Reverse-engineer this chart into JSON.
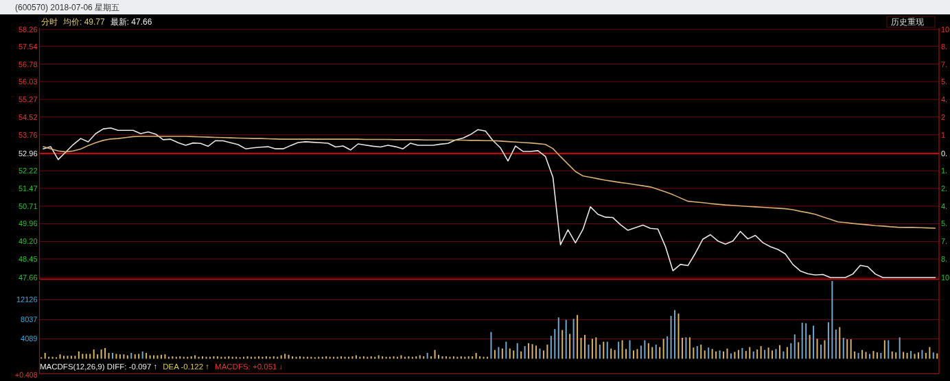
{
  "chart_data": [
    {
      "type": "line",
      "title": "(600570) 2018-07-06 星期五",
      "annotations": [
        "分时",
        "均价: 49.77",
        "最新: 47.66",
        "历史重现",
        "10",
        "8.",
        "7.",
        "5.",
        "4.",
        "2",
        "1",
        "0.",
        "1.",
        "2.",
        "4.",
        "5.",
        "7.",
        "8.",
        "10"
      ],
      "categories": [
        null,
        null,
        null,
        null,
        null,
        null,
        null,
        null,
        null,
        null,
        null,
        null,
        null,
        null,
        null,
        null,
        null,
        null,
        null,
        null,
        null,
        null,
        null,
        null,
        null,
        null,
        null,
        null,
        null,
        null,
        null,
        null,
        null,
        null,
        null,
        null,
        null,
        null,
        null,
        null,
        null,
        null,
        null,
        null,
        null,
        null,
        null,
        null,
        null,
        null,
        null,
        null,
        null,
        null,
        null,
        null,
        null,
        null,
        null,
        null,
        null,
        null,
        null,
        null,
        null,
        null,
        null,
        null,
        null,
        null,
        null,
        null,
        null,
        null,
        null,
        null,
        null,
        null,
        null,
        null,
        null,
        null,
        null,
        null,
        null,
        null,
        null,
        null,
        null,
        null,
        null,
        null,
        null,
        null,
        null,
        null,
        null,
        null,
        null,
        null,
        null,
        null,
        null,
        null,
        null,
        null,
        null,
        null,
        null,
        null,
        null,
        null,
        null,
        null,
        null,
        null,
        null,
        null,
        null,
        null
      ],
      "ylim": [
        47.66,
        58.26
      ],
      "yticks": [
        47.66,
        48.45,
        {
          "value": 49.2,
          "label": "49.20"
        },
        49.96,
        50.71,
        51.47,
        52.22,
        52.96,
        53.76,
        54.52,
        55.27,
        56.03,
        56.78,
        57.54,
        58.26
      ],
      "tick_labels": "y",
      "grid": "y",
      "ref_lines": [
        {
          "axis": "y",
          "value": 52.96,
          "color": "#d40000"
        }
      ],
      "series": [
        {
          "color": "#e8e8e8",
          "values": [
            53.16,
            53.25,
            52.7,
            53.02,
            53.34,
            53.6,
            53.46,
            53.81,
            54.01,
            54.05,
            53.95,
            53.95,
            53.95,
            53.81,
            53.88,
            53.79,
            53.55,
            53.57,
            53.42,
            53.31,
            53.41,
            53.39,
            53.27,
            53.51,
            53.5,
            53.42,
            53.34,
            53.16,
            53.2,
            53.23,
            53.25,
            53.16,
            53.16,
            53.3,
            53.43,
            53.46,
            53.44,
            53.42,
            53.4,
            53.24,
            53.28,
            53.11,
            53.37,
            53.32,
            53.27,
            53.24,
            53.31,
            53.25,
            53.16,
            53.4,
            53.31,
            53.31,
            53.31,
            53.36,
            53.39,
            53.54,
            53.62,
            53.77,
            53.98,
            53.92,
            53.51,
            53.2,
            52.64,
            53.28,
            53.05,
            53.05,
            53.08,
            52.83,
            51.94,
            49.06,
            49.7,
            49.14,
            49.72,
            50.68,
            50.36,
            50.24,
            50.22,
            49.92,
            49.68,
            49.79,
            49.9,
            49.76,
            49.73,
            48.99,
            47.95,
            48.22,
            48.17,
            48.7,
            49.3,
            49.49,
            49.22,
            49.09,
            49.22,
            49.63,
            49.31,
            49.46,
            49.15,
            48.98,
            48.86,
            48.67,
            48.22,
            47.94,
            47.82,
            47.77,
            47.79,
            47.66,
            47.66,
            47.66,
            47.81,
            48.18,
            48.12,
            47.81,
            47.66,
            47.66,
            47.66,
            47.66,
            47.66,
            47.66,
            47.66,
            47.66
          ]
        },
        {
          "color": "#d6b074",
          "values": [
            53.25,
            53.16,
            53.07,
            53.03,
            53.07,
            53.15,
            53.3,
            53.42,
            53.52,
            53.58,
            53.6,
            53.64,
            53.68,
            53.69,
            53.69,
            53.69,
            53.69,
            53.69,
            53.69,
            53.69,
            53.68,
            53.67,
            53.66,
            53.65,
            53.64,
            53.63,
            53.62,
            53.61,
            53.6,
            53.6,
            53.59,
            53.58,
            53.57,
            53.57,
            53.57,
            53.57,
            53.57,
            53.57,
            53.57,
            53.57,
            53.57,
            53.57,
            53.57,
            53.56,
            53.56,
            53.56,
            53.56,
            53.55,
            53.55,
            53.55,
            53.55,
            53.54,
            53.54,
            53.54,
            53.54,
            53.53,
            53.53,
            53.52,
            53.52,
            53.51,
            53.51,
            53.49,
            53.47,
            53.45,
            53.43,
            53.41,
            53.38,
            53.35,
            53.17,
            52.83,
            52.51,
            52.19,
            52.0,
            51.94,
            51.88,
            51.82,
            51.77,
            51.72,
            51.68,
            51.63,
            51.58,
            51.53,
            51.43,
            51.32,
            51.2,
            51.06,
            50.92,
            50.89,
            50.86,
            50.82,
            50.79,
            50.76,
            50.74,
            50.72,
            50.7,
            50.68,
            50.66,
            50.64,
            50.62,
            50.6,
            50.56,
            50.49,
            50.43,
            50.36,
            50.25,
            50.15,
            50.04,
            50.01,
            49.97,
            49.94,
            49.91,
            49.88,
            49.86,
            49.83,
            49.81,
            49.8,
            49.8,
            49.79,
            49.78,
            49.77
          ]
        }
      ]
    },
    {
      "type": "bar",
      "annotations": [
        "MACDFS(12,26,9) DIFF: -0.097 ↑",
        "DEA -0.122 ↑",
        "MACDFS: +0.051 ↓",
        "+0.408"
      ],
      "categories": [
        null,
        null,
        null,
        null,
        null,
        null,
        null,
        null,
        null,
        null,
        null,
        null,
        null,
        null,
        null,
        null,
        null,
        null,
        null,
        null,
        null,
        null,
        null,
        null,
        null,
        null,
        null,
        null,
        null,
        null,
        null,
        null,
        null,
        null,
        null,
        null,
        null,
        null,
        null,
        null,
        null,
        null,
        null,
        null,
        null,
        null,
        null,
        null,
        null,
        null,
        null,
        null,
        null,
        null,
        null,
        null,
        null,
        null,
        null,
        null,
        null,
        null,
        null,
        null,
        null,
        null,
        null,
        null,
        null,
        null,
        null,
        null,
        null,
        null,
        null,
        null,
        null,
        null,
        null,
        null,
        null,
        null,
        null,
        null,
        null,
        null,
        null,
        null,
        null,
        null,
        null,
        null,
        null,
        null,
        null,
        null,
        null,
        null,
        null,
        null,
        null,
        null,
        null,
        null,
        null,
        null,
        null,
        null,
        null,
        null,
        null,
        null,
        null,
        null,
        null,
        null,
        null,
        null,
        null,
        null,
        null,
        null,
        null,
        null,
        null,
        null,
        null,
        null,
        null,
        null,
        null,
        null,
        null,
        null,
        null,
        null,
        null,
        null,
        null,
        null,
        null,
        null,
        null,
        null,
        null,
        null,
        null,
        null,
        null,
        null,
        null,
        null,
        null,
        null,
        null,
        null,
        null,
        null,
        null,
        null,
        null,
        null,
        null,
        null,
        null,
        null,
        null,
        null,
        null,
        null,
        null,
        null,
        null,
        null,
        null,
        null,
        null,
        null,
        null,
        null,
        null,
        null,
        null,
        null,
        null,
        null,
        null,
        null,
        null,
        null,
        null,
        null,
        null,
        null,
        null,
        null,
        null,
        null,
        null,
        null,
        null,
        null,
        null,
        null,
        null,
        null,
        null,
        null,
        null,
        null,
        null,
        null,
        null,
        null,
        null,
        null,
        null,
        null,
        null,
        null,
        null,
        null,
        null,
        null,
        null,
        null,
        null,
        null,
        null,
        null,
        null,
        null,
        null,
        null,
        null,
        null,
        null,
        null,
        null,
        null
      ],
      "values": [
        300,
        1200,
        400,
        400,
        300,
        900,
        600,
        600,
        600,
        600,
        1500,
        1000,
        1000,
        1000,
        1900,
        900,
        1900,
        2200,
        1200,
        1200,
        1000,
        900,
        900,
        700,
        1200,
        900,
        1000,
        1500,
        1200,
        700,
        700,
        700,
        800,
        900,
        400,
        500,
        400,
        500,
        400,
        400,
        500,
        700,
        400,
        500,
        400,
        400,
        500,
        500,
        400,
        400,
        500,
        400,
        400,
        300,
        400,
        500,
        400,
        400,
        500,
        400,
        500,
        400,
        500,
        400,
        700,
        1000,
        800,
        500,
        400,
        500,
        400,
        400,
        400,
        300,
        400,
        400,
        500,
        400,
        400,
        400,
        500,
        400,
        400,
        500,
        700,
        400,
        500,
        400,
        500,
        400,
        700,
        500,
        400,
        400,
        500,
        400,
        700,
        400,
        500,
        400,
        500,
        700,
        500,
        1200,
        500,
        1800,
        800,
        500,
        500,
        400,
        500,
        400,
        500,
        400,
        500,
        500,
        1200,
        500,
        400,
        400,
        5500,
        1800,
        2400,
        2100,
        3500,
        2100,
        1700,
        3200,
        1500,
        2600,
        3200,
        3000,
        2700,
        2100,
        1700,
        2900,
        4700,
        6100,
        8500,
        5900,
        8000,
        5100,
        8200,
        9000,
        4300,
        4900,
        2900,
        4100,
        4400,
        2900,
        3500,
        3500,
        2100,
        1800,
        3500,
        3800,
        2000,
        3800,
        1700,
        2000,
        2700,
        3800,
        3200,
        2400,
        2900,
        2400,
        4100,
        4600,
        8800,
        10000,
        9300,
        4300,
        4400,
        4400,
        2300,
        2600,
        2900,
        1700,
        2300,
        2000,
        1500,
        1700,
        1500,
        2100,
        1100,
        1400,
        1800,
        2200,
        1600,
        2400,
        1500,
        1900,
        2600,
        1800,
        2300,
        1700,
        2000,
        2800,
        1500,
        2400,
        3200,
        5000,
        3400,
        7400,
        7300,
        4900,
        6800,
        4100,
        2900,
        3800,
        7500,
        16000,
        6000,
        6500,
        4300,
        4000,
        4000,
        1500,
        1200,
        1800,
        1400,
        1000,
        1600,
        1300,
        1200,
        3800,
        3800,
        1500,
        1300,
        4400,
        1400,
        1200,
        1600,
        1000,
        1300,
        1800,
        1200,
        2400,
        1300,
        1100
      ],
      "colors": [
        "#d6b46c",
        "#d6b46c",
        "#d6b46c",
        "#d6b46c",
        "#d6b46c",
        "#d6b46c",
        "#d6b46c",
        "#d6b46c",
        "#d6b46c",
        "#d6b46c",
        "#d6b46c",
        "#d6b46c",
        "#d6b46c",
        "#d6b46c",
        "#d6b46c",
        "#d6b46c",
        "#d6b46c",
        "#d6b46c",
        "#d6b46c",
        "#74a8cc",
        "#d6b46c",
        "#d6b46c",
        "#d6b46c",
        "#d6b46c",
        "#74a8cc",
        "#d6b46c",
        "#d6b46c",
        "#74a8cc",
        "#d6b46c",
        "#d6b46c",
        "#d6b46c",
        "#d6b46c",
        "#d6b46c",
        "#d6b46c",
        "#d6b46c",
        "#d6b46c",
        "#d6b46c",
        "#d6b46c",
        "#d6b46c",
        "#d6b46c",
        "#d6b46c",
        "#d6b46c",
        "#d6b46c",
        "#d6b46c",
        "#d6b46c",
        "#d6b46c",
        "#d6b46c",
        "#d6b46c",
        "#d6b46c",
        "#d6b46c",
        "#d6b46c",
        "#d6b46c",
        "#d6b46c",
        "#d6b46c",
        "#d6b46c",
        "#d6b46c",
        "#d6b46c",
        "#d6b46c",
        "#d6b46c",
        "#d6b46c",
        "#d6b46c",
        "#d6b46c",
        "#d6b46c",
        "#d6b46c",
        "#d6b46c",
        "#d6b46c",
        "#d6b46c",
        "#d6b46c",
        "#d6b46c",
        "#d6b46c",
        "#d6b46c",
        "#d6b46c",
        "#d6b46c",
        "#d6b46c",
        "#d6b46c",
        "#d6b46c",
        "#d6b46c",
        "#d6b46c",
        "#d6b46c",
        "#d6b46c",
        "#d6b46c",
        "#d6b46c",
        "#d6b46c",
        "#d6b46c",
        "#d6b46c",
        "#d6b46c",
        "#d6b46c",
        "#d6b46c",
        "#d6b46c",
        "#d6b46c",
        "#d6b46c",
        "#d6b46c",
        "#d6b46c",
        "#d6b46c",
        "#d6b46c",
        "#d6b46c",
        "#d6b46c",
        "#d6b46c",
        "#d6b46c",
        "#d6b46c",
        "#d6b46c",
        "#d6b46c",
        "#d6b46c",
        "#74a8cc",
        "#d6b46c",
        "#d6b46c",
        "#d6b46c",
        "#d6b46c",
        "#d6b46c",
        "#d6b46c",
        "#d6b46c",
        "#d6b46c",
        "#d6b46c",
        "#d6b46c",
        "#d6b46c",
        "#d6b46c",
        "#d6b46c",
        "#d6b46c",
        "#d6b46c",
        "#d6b46c",
        "#74a8cc",
        "#d6b46c",
        "#74a8cc",
        "#d6b46c",
        "#74a8cc",
        "#d6b46c",
        "#d6b46c",
        "#74a8cc",
        "#d6b46c",
        "#74a8cc",
        "#d6b46c",
        "#d6b46c",
        "#d6b46c",
        "#74a8cc",
        "#d6b46c",
        "#d6b46c",
        "#74a8cc",
        "#74a8cc",
        "#74a8cc",
        "#d6b46c",
        "#74a8cc",
        "#d6b46c",
        "#74a8cc",
        "#d6b46c",
        "#d6b46c",
        "#d6b46c",
        "#74a8cc",
        "#d6b46c",
        "#d6b46c",
        "#74a8cc",
        "#d6b46c",
        "#74a8cc",
        "#d6b46c",
        "#d6b46c",
        "#74a8cc",
        "#d6b46c",
        "#d6b46c",
        "#74a8cc",
        "#d6b46c",
        "#d6b46c",
        "#74a8cc",
        "#74a8cc",
        "#d6b46c",
        "#d6b46c",
        "#74a8cc",
        "#d6b46c",
        "#d6b46c",
        "#74a8cc",
        "#74a8cc",
        "#74a8cc",
        "#d6b46c",
        "#d6b46c",
        "#74a8cc",
        "#d6b46c",
        "#d6b46c",
        "#74a8cc",
        "#d6b46c",
        "#d6b46c",
        "#74a8cc",
        "#d6b46c",
        "#d6b46c",
        "#74a8cc",
        "#d6b46c",
        "#d6b46c",
        "#74a8cc",
        "#d6b46c",
        "#d6b46c",
        "#74a8cc",
        "#d6b46c",
        "#d6b46c",
        "#74a8cc",
        "#d6b46c",
        "#d6b46c",
        "#74a8cc",
        "#d6b46c",
        "#d6b46c",
        "#74a8cc",
        "#d6b46c",
        "#74a8cc",
        "#d6b46c",
        "#74a8cc",
        "#74a8cc",
        "#d6b46c",
        "#74a8cc",
        "#74a8cc",
        "#d6b46c",
        "#74a8cc",
        "#d6b46c",
        "#74a8cc",
        "#d6b46c",
        "#74a8cc",
        "#74a8cc",
        "#74a8cc",
        "#d6b46c",
        "#74a8cc",
        "#d6b46c",
        "#d6b46c",
        "#d6b46c",
        "#74a8cc",
        "#d6b46c",
        "#d6b46c",
        "#74a8cc",
        "#d6b46c",
        "#d6b46c",
        "#74a8cc",
        "#d6b46c",
        "#74a8cc",
        "#d6b46c",
        "#d6b46c",
        "#74a8cc",
        "#d6b46c",
        "#d6b46c",
        "#74a8cc",
        "#d6b46c",
        "#d6b46c",
        "#74a8cc",
        "#d6b46c",
        "#d6b46c",
        "#74a8cc",
        "#d6b46c"
      ],
      "ylim": [
        0,
        16000
      ],
      "yticks": [
        4089,
        8037,
        12126
      ],
      "tick_labels": "y",
      "grid": "y"
    }
  ]
}
